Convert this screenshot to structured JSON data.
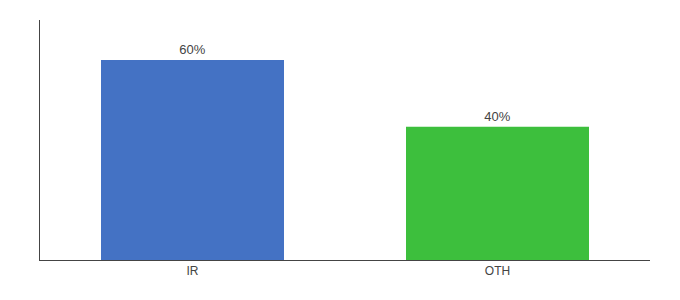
{
  "chart_data": {
    "type": "bar",
    "categories": [
      "IR",
      "OTH"
    ],
    "values": [
      60,
      40
    ],
    "value_labels": [
      "60%",
      "40%"
    ],
    "colors": [
      "#4472c4",
      "#3dbf3d"
    ],
    "data_labels": true,
    "ylim": [
      0,
      72
    ],
    "tick_labels": "x",
    "grid": false
  }
}
